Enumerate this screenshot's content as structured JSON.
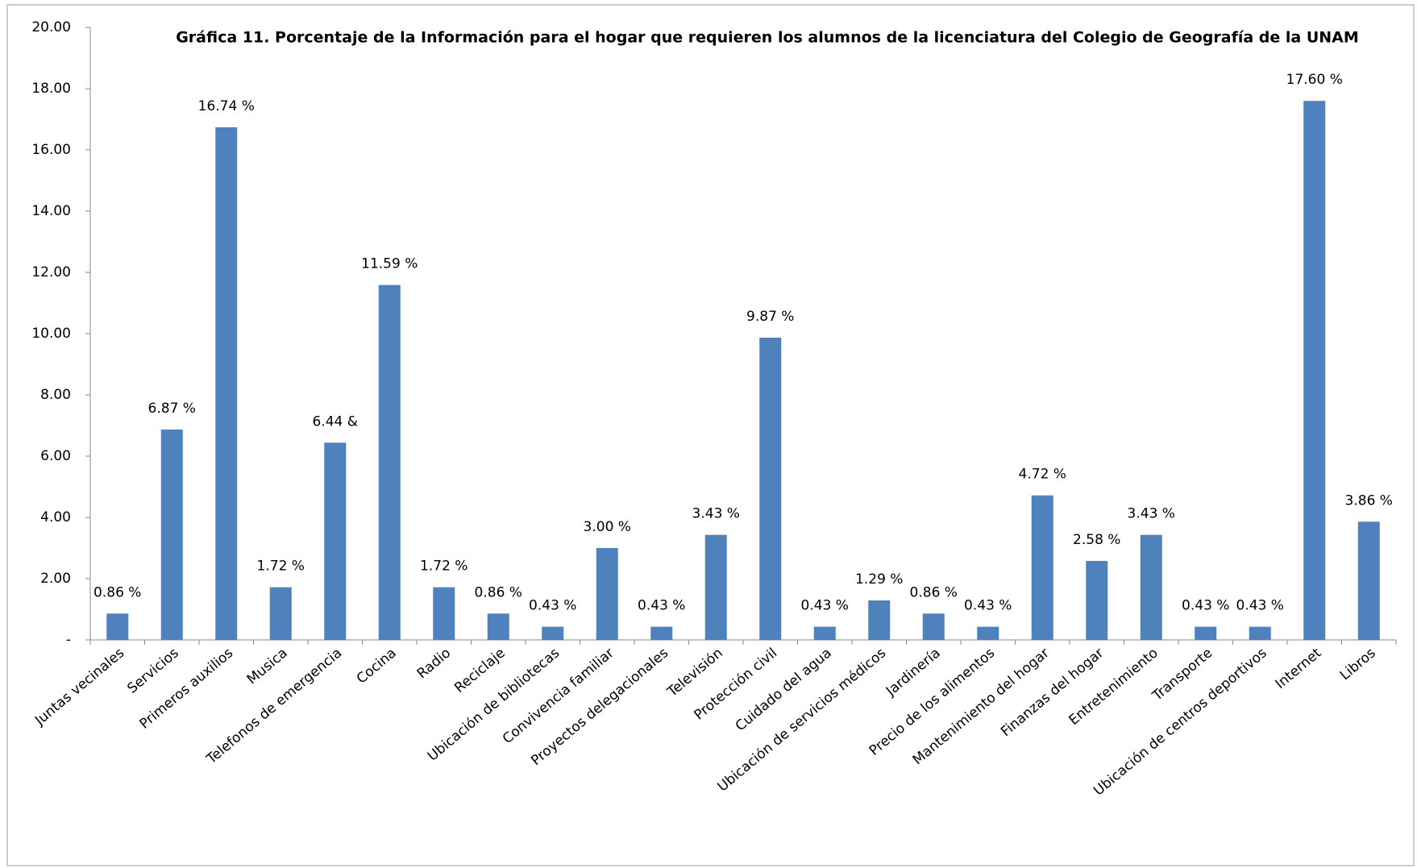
{
  "chart_data": {
    "type": "bar",
    "title": "Gráfica 11. Porcentaje de la Información para el hogar que requieren los alumnos de la licenciatura del Colegio de Geografía de la UNAM",
    "categories": [
      "Juntas vecinales",
      "Servicios",
      "Primeros auxilios",
      "Musica",
      "Telefonos de emergencia",
      "Cocina",
      "Radio",
      "Reciclaje",
      "Ubicación de bibliotecas",
      "Convivencia familiar",
      "Proyectos delegacionales",
      "Televisión",
      "Protección civil",
      "Cuidado del agua",
      "Ubicación de servicios médicos",
      "Jardinería",
      "Precio de los alimentos",
      "Mantenimiento del hogar",
      "Finanzas del hogar",
      "Entretenimiento",
      "Transporte",
      "Ubicación de centros deportivos",
      "Internet",
      "Libros"
    ],
    "values": [
      0.86,
      6.87,
      16.74,
      1.72,
      6.44,
      11.59,
      1.72,
      0.86,
      0.43,
      3.0,
      0.43,
      3.43,
      9.87,
      0.43,
      1.29,
      0.86,
      0.43,
      4.72,
      2.58,
      3.43,
      0.43,
      0.43,
      17.6,
      3.86
    ],
    "value_labels": [
      "0.86 %",
      "6.87 %",
      "16.74 %",
      "1.72 %",
      "6.44 &",
      "11.59 %",
      "1.72 %",
      "0.86 %",
      "0.43 %",
      "3.00 %",
      "0.43 %",
      "3.43 %",
      "9.87 %",
      "0.43 %",
      "1.29 %",
      "0.86 %",
      "0.43 %",
      "4.72 %",
      "2.58 %",
      "3.43 %",
      "0.43 %",
      "0.43 %",
      "17.60 %",
      "3.86 %"
    ],
    "color": "#4f81bd",
    "ylim": [
      0,
      20
    ],
    "yticks": [
      {
        "value": 0,
        "label": "-"
      },
      {
        "value": 2,
        "label": "2.00"
      },
      {
        "value": 4,
        "label": "4.00"
      },
      {
        "value": 6,
        "label": "6.00"
      },
      {
        "value": 8,
        "label": "8.00"
      },
      {
        "value": 10,
        "label": "10.00"
      },
      {
        "value": 12,
        "label": "12.00"
      },
      {
        "value": 14,
        "label": "14.00"
      },
      {
        "value": 16,
        "label": "16.00"
      },
      {
        "value": 18,
        "label": "18.00"
      },
      {
        "value": 20,
        "label": "20.00"
      }
    ],
    "grid": false
  }
}
